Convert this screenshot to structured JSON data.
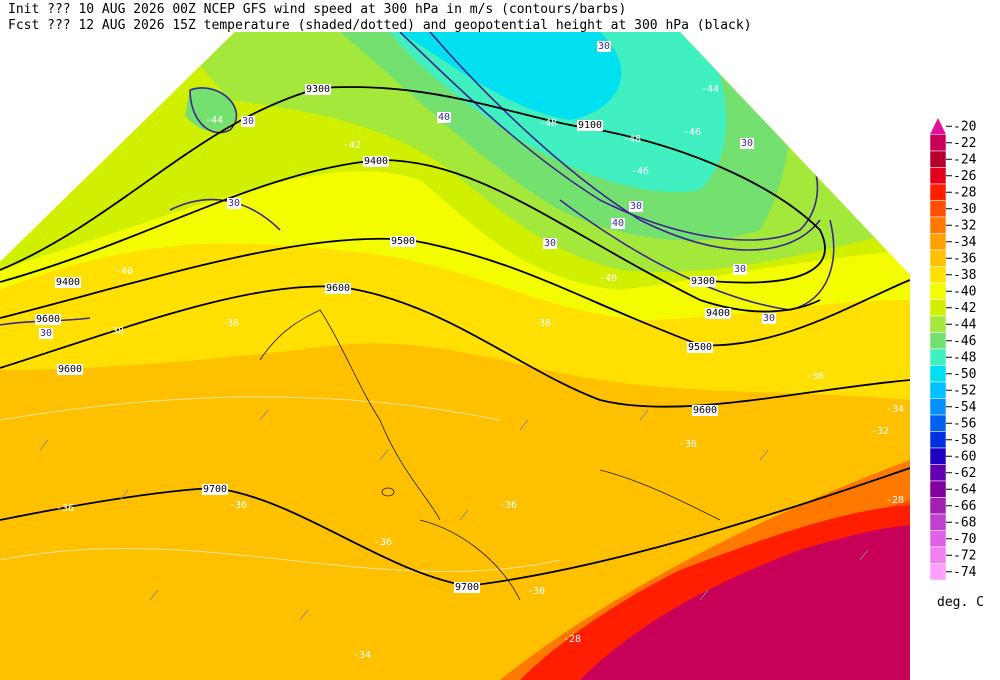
{
  "header": {
    "line1": "Init  ??? 10 AUG 2026 00Z  NCEP GFS wind speed at 300 hPa in m/s (contours/barbs)",
    "line2": "Fcst ??? 12 AUG 2026 15Z  temperature (shaded/dotted) and geopotential height at 300 hPa (black)"
  },
  "legend": {
    "unit": "deg. C",
    "levels": [
      {
        "label": "-20",
        "color": "#e0129a"
      },
      {
        "label": "-22",
        "color": "#c8005a"
      },
      {
        "label": "-24",
        "color": "#b4002c"
      },
      {
        "label": "-26",
        "color": "#e4001c"
      },
      {
        "label": "-28",
        "color": "#ff1e00"
      },
      {
        "label": "-30",
        "color": "#ff5000"
      },
      {
        "label": "-32",
        "color": "#ff7800"
      },
      {
        "label": "-34",
        "color": "#ffa000"
      },
      {
        "label": "-36",
        "color": "#ffc000"
      },
      {
        "label": "-38",
        "color": "#ffe000"
      },
      {
        "label": "-40",
        "color": "#f4fc00"
      },
      {
        "label": "-42",
        "color": "#d0f000"
      },
      {
        "label": "-44",
        "color": "#a4e83c"
      },
      {
        "label": "-46",
        "color": "#74e070"
      },
      {
        "label": "-48",
        "color": "#40f0c0"
      },
      {
        "label": "-50",
        "color": "#00e0f0"
      },
      {
        "label": "-52",
        "color": "#00c0ff"
      },
      {
        "label": "-54",
        "color": "#0090ff"
      },
      {
        "label": "-56",
        "color": "#0060f0"
      },
      {
        "label": "-58",
        "color": "#0030e0"
      },
      {
        "label": "-60",
        "color": "#2000c0"
      },
      {
        "label": "-62",
        "color": "#6000b0"
      },
      {
        "label": "-64",
        "color": "#8000a0"
      },
      {
        "label": "-66",
        "color": "#a020b0"
      },
      {
        "label": "-68",
        "color": "#c040d0"
      },
      {
        "label": "-70",
        "color": "#e060e8"
      },
      {
        "label": "-72",
        "color": "#f080f0"
      },
      {
        "label": "-74",
        "color": "#ffa0ff"
      }
    ]
  },
  "map": {
    "height_labels": [
      "9100",
      "9300",
      "9400",
      "9500",
      "9600",
      "9400",
      "9600",
      "9600",
      "9700",
      "9700",
      "9600",
      "9500",
      "9400",
      "9300"
    ],
    "wind_labels": [
      "30",
      "30",
      "40",
      "30",
      "30",
      "40",
      "30",
      "30",
      "30",
      "30",
      "30"
    ],
    "temperature_labels": [
      "-44",
      "-42",
      "-40",
      "-38",
      "-36",
      "-36",
      "-36",
      "-36",
      "-34",
      "-30",
      "-28",
      "-28",
      "-32",
      "-34",
      "-36",
      "-38",
      "-44",
      "-46",
      "-48",
      "-46",
      "-48",
      "-40",
      "-36",
      "-38"
    ]
  }
}
